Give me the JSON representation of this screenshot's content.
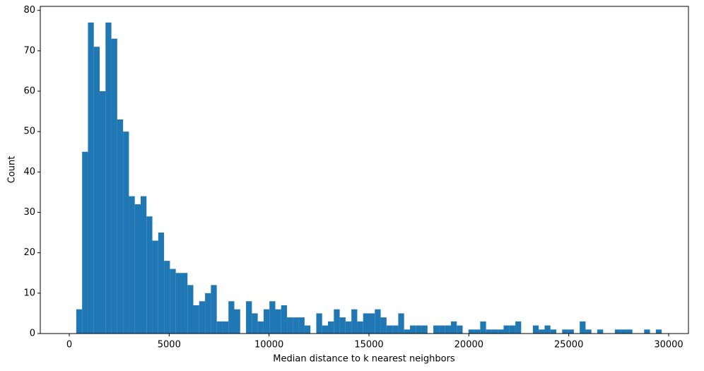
{
  "chart_data": {
    "type": "histogram",
    "xlabel": "Median distance to k nearest neighbors",
    "ylabel": "Count",
    "color": "#1f77b4",
    "bins": [
      350,
      643,
      936,
      1229,
      1522,
      1815,
      2108,
      2401,
      2694,
      2987,
      3280,
      3573,
      3866,
      4159,
      4452,
      4745,
      5038,
      5331,
      5624,
      5917,
      6210,
      6503,
      6796,
      7089,
      7382,
      7675,
      7968,
      8261,
      8554,
      8847,
      9140,
      9433,
      9726,
      10019,
      10312,
      10605,
      10898,
      11191,
      11484,
      11777,
      12070,
      12363,
      12656,
      12949,
      13242,
      13535,
      13828,
      14121,
      14414,
      14707,
      15000,
      15293,
      15586,
      15879,
      16172,
      16465,
      16758,
      17051,
      17344,
      17637,
      17930,
      18223,
      18516,
      18809,
      19102,
      19395,
      19688,
      19981,
      20274,
      20567,
      20860,
      21153,
      21446,
      21739,
      22032,
      22325,
      22618,
      22911,
      23204,
      23497,
      23790,
      24083,
      24376,
      24669,
      24962,
      25255,
      25548,
      25841,
      26134,
      26427,
      26720,
      27013,
      27306,
      27599,
      27892,
      28185,
      28478,
      28771,
      29064,
      29357,
      29650
    ],
    "values": [
      6,
      45,
      77,
      71,
      60,
      77,
      73,
      53,
      50,
      34,
      32,
      34,
      29,
      23,
      25,
      18,
      16,
      15,
      15,
      12,
      7,
      8,
      10,
      12,
      3,
      3,
      8,
      6,
      0,
      8,
      5,
      3,
      6,
      8,
      6,
      7,
      4,
      4,
      4,
      2,
      0,
      5,
      2,
      3,
      6,
      4,
      3,
      6,
      3,
      5,
      5,
      6,
      4,
      2,
      2,
      5,
      1,
      2,
      2,
      2,
      0,
      2,
      2,
      2,
      3,
      2,
      0,
      1,
      1,
      3,
      1,
      1,
      1,
      2,
      2,
      3,
      0,
      0,
      2,
      1,
      2,
      1,
      0,
      1,
      1,
      0,
      3,
      1,
      0,
      1,
      0,
      0,
      1,
      1,
      1,
      0,
      0,
      1,
      0,
      1
    ],
    "xlim": [
      -1450,
      30990
    ],
    "ylim": [
      0,
      81
    ],
    "xticks": [
      0,
      5000,
      10000,
      15000,
      20000,
      25000,
      30000
    ],
    "yticks": [
      0,
      10,
      20,
      30,
      40,
      50,
      60,
      70,
      80
    ]
  }
}
